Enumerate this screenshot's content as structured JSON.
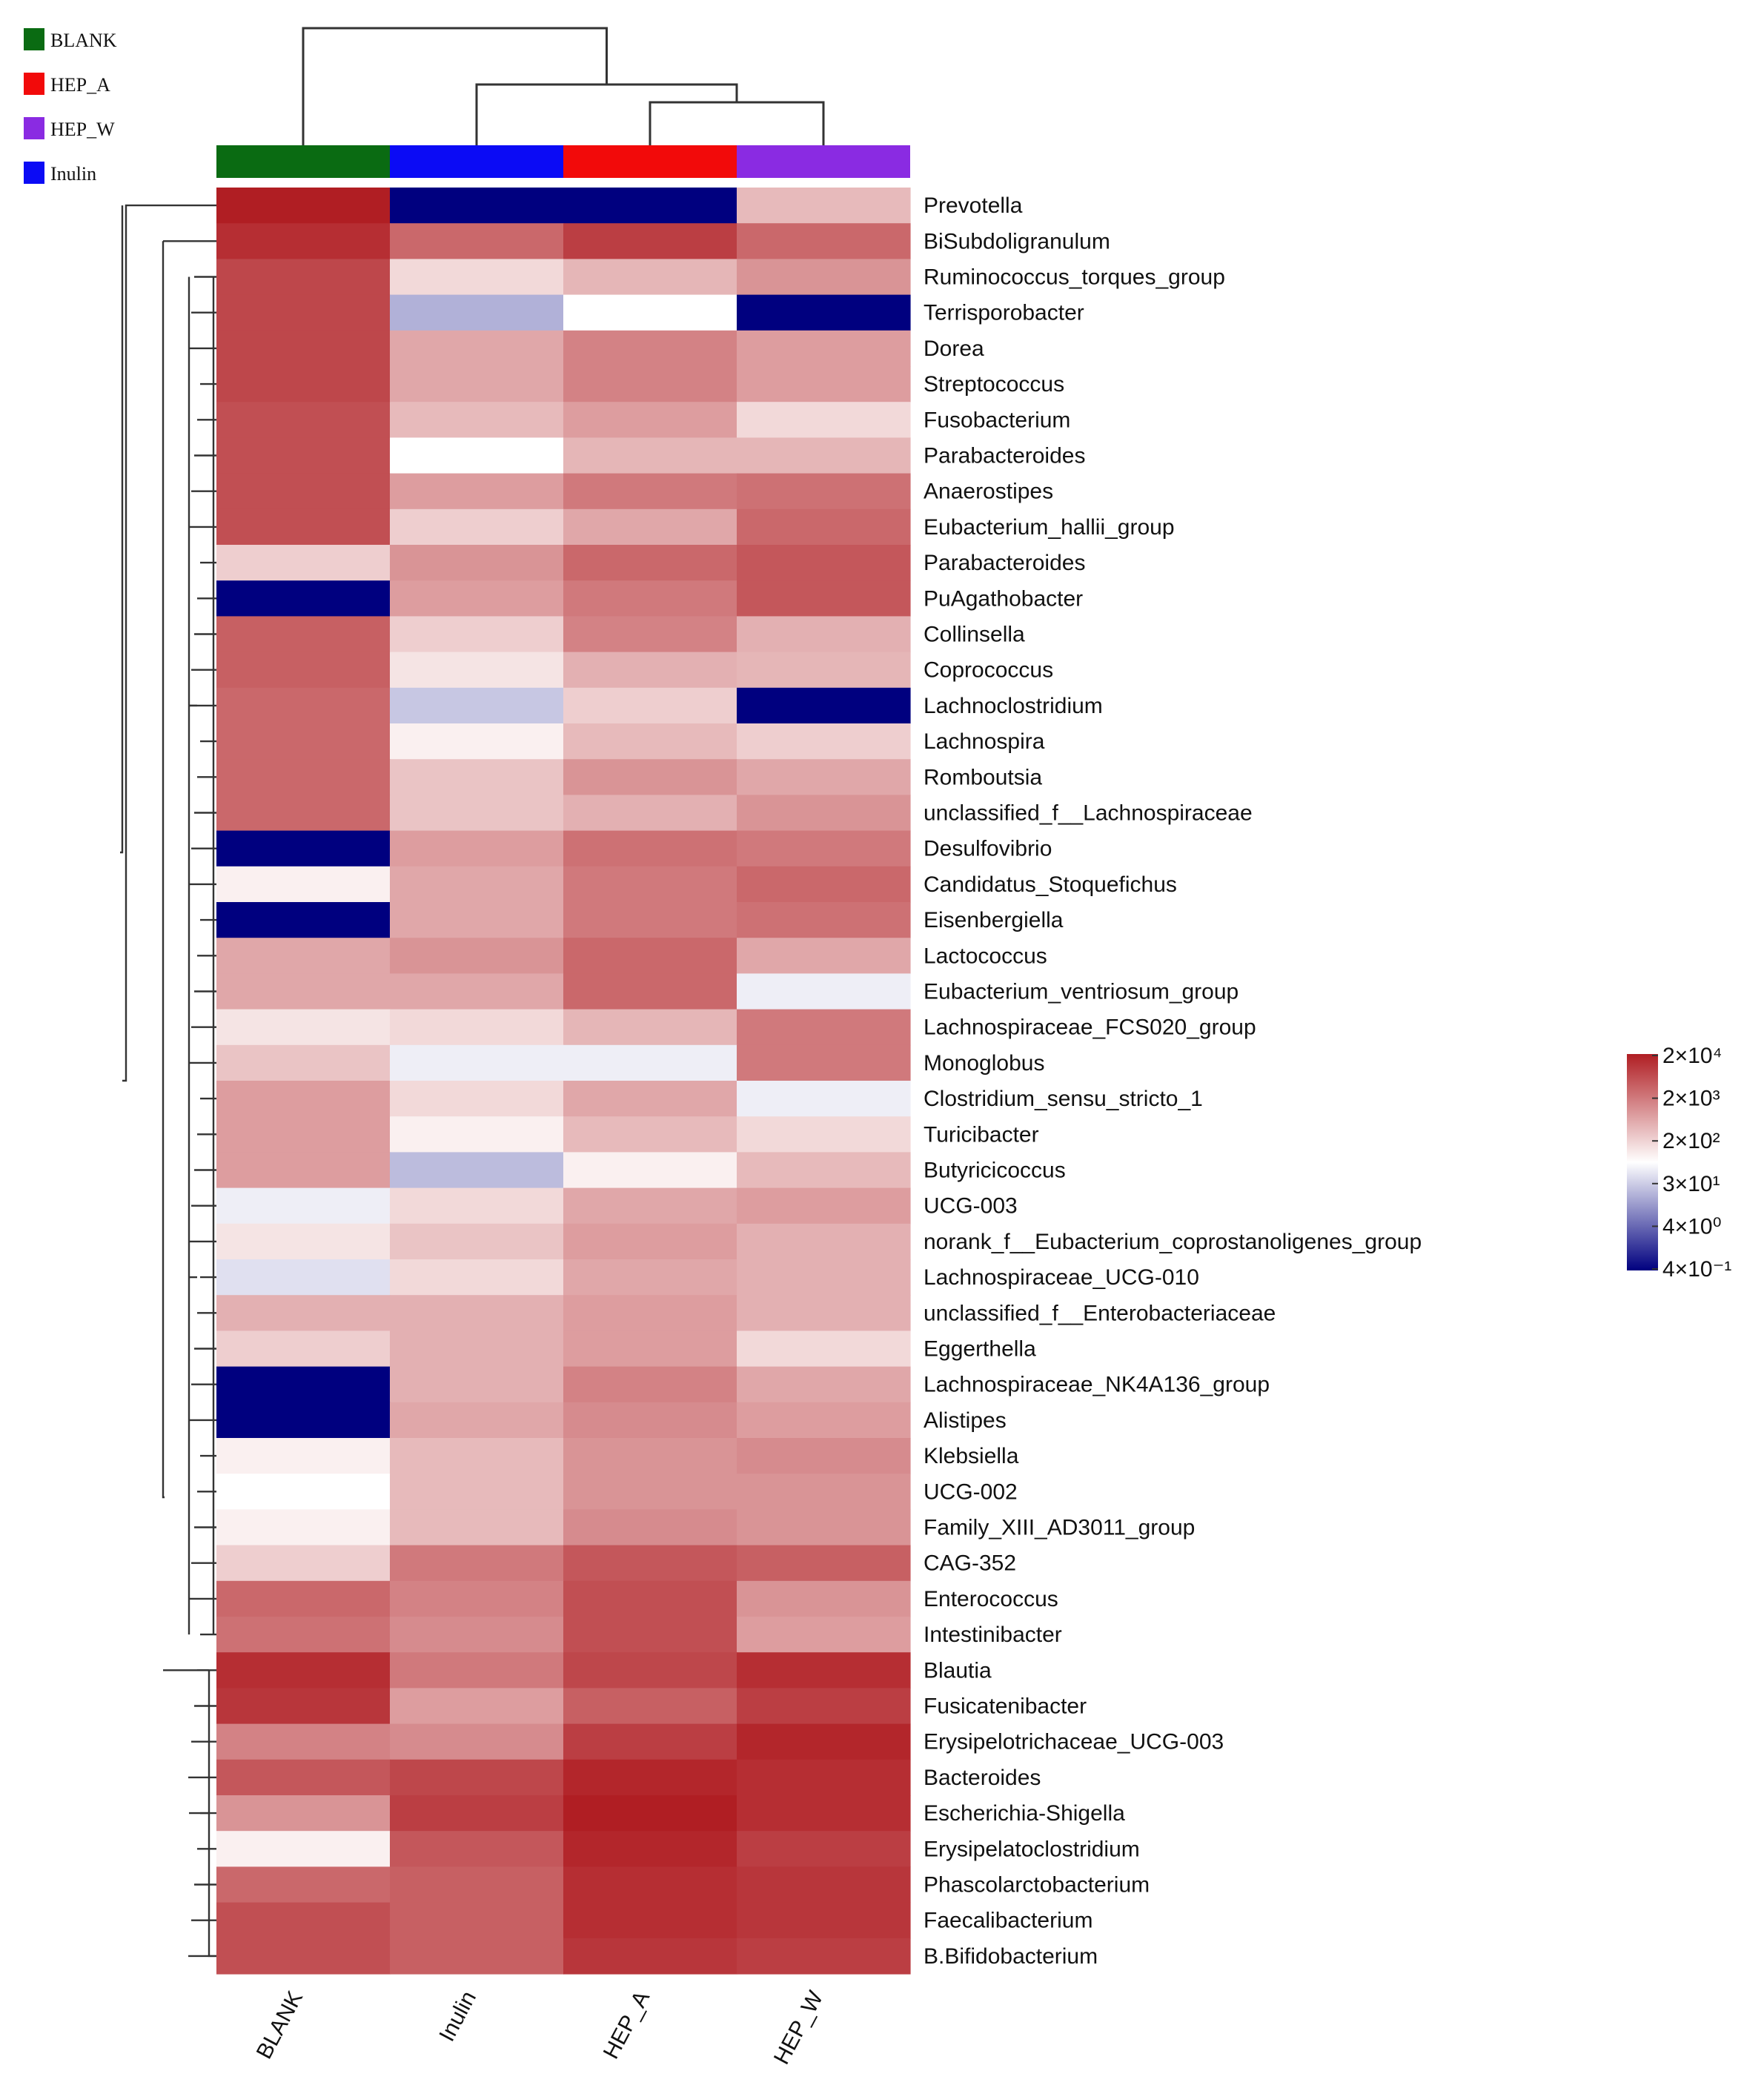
{
  "chart_data": {
    "type": "heatmap",
    "value_scale": "log10",
    "columns": [
      "BLANK",
      "Inulin",
      "HEP_A",
      "HEP_W"
    ],
    "group_legend": [
      {
        "name": "BLANK",
        "color": "#0a6b12"
      },
      {
        "name": "HEP_A",
        "color": "#f20a0a"
      },
      {
        "name": "HEP_W",
        "color": "#8a2be2"
      },
      {
        "name": "Inulin",
        "color": "#0b0bf5"
      }
    ],
    "group_bar_colors": [
      "#0a6b12",
      "#0b0bf5",
      "#f20a0a",
      "#8a2be2"
    ],
    "rows": [
      {
        "name": "Prevotella",
        "values": [
          2.0,
          -0.4,
          -0.4,
          1.1
        ]
      },
      {
        "name": "BiSubdoligranulum",
        "values": [
          1.9,
          1.55,
          1.8,
          1.55
        ]
      },
      {
        "name": "Ruminococcus_torques_group",
        "values": [
          1.75,
          0.95,
          1.12,
          1.3
        ]
      },
      {
        "name": "Terrisporobacter",
        "values": [
          1.75,
          0.5,
          0.8,
          -0.4
        ]
      },
      {
        "name": "Dorea",
        "values": [
          1.75,
          1.2,
          1.4,
          1.25
        ]
      },
      {
        "name": "Streptococcus",
        "values": [
          1.75,
          1.2,
          1.4,
          1.25
        ]
      },
      {
        "name": "Fusobacterium",
        "values": [
          1.7,
          1.1,
          1.25,
          0.95
        ]
      },
      {
        "name": "Parabacteroides",
        "values": [
          1.7,
          0.8,
          1.12,
          1.12
        ]
      },
      {
        "name": "Anaerostipes",
        "values": [
          1.7,
          1.25,
          1.45,
          1.5
        ]
      },
      {
        "name": "Eubacterium_hallii_group",
        "values": [
          1.7,
          1.0,
          1.2,
          1.55
        ]
      },
      {
        "name": "Parabacteroides",
        "values": [
          1.0,
          1.3,
          1.55,
          1.65
        ]
      },
      {
        "name": "PuAgathobacter",
        "values": [
          -0.4,
          1.25,
          1.45,
          1.65
        ]
      },
      {
        "name": "Collinsella",
        "values": [
          1.6,
          1.0,
          1.4,
          1.15
        ]
      },
      {
        "name": "Coprococcus",
        "values": [
          1.6,
          0.9,
          1.15,
          1.12
        ]
      },
      {
        "name": "Lachnoclostridium",
        "values": [
          1.55,
          0.6,
          1.0,
          -0.4
        ]
      },
      {
        "name": "Lachnospira",
        "values": [
          1.55,
          0.85,
          1.1,
          1.0
        ]
      },
      {
        "name": "Romboutsia",
        "values": [
          1.55,
          1.05,
          1.3,
          1.2
        ]
      },
      {
        "name": "unclassified_f__Lachnospiraceae",
        "values": [
          1.55,
          1.05,
          1.15,
          1.3
        ]
      },
      {
        "name": "Desulfovibrio",
        "values": [
          -0.4,
          1.25,
          1.5,
          1.45
        ]
      },
      {
        "name": "Candidatus_Stoquefichus",
        "values": [
          0.85,
          1.2,
          1.45,
          1.55
        ]
      },
      {
        "name": "Eisenbergiella",
        "values": [
          -0.4,
          1.2,
          1.45,
          1.5
        ]
      },
      {
        "name": "Lactococcus",
        "values": [
          1.2,
          1.3,
          1.55,
          1.2
        ]
      },
      {
        "name": "Eubacterium_ventriosum_group",
        "values": [
          1.2,
          1.2,
          1.55,
          0.75
        ]
      },
      {
        "name": "Lachnospiraceae_FCS020_group",
        "values": [
          0.9,
          0.95,
          1.12,
          1.45
        ]
      },
      {
        "name": "Monoglobus",
        "values": [
          1.05,
          0.75,
          0.75,
          1.45
        ]
      },
      {
        "name": "Clostridium_sensu_stricto_1",
        "values": [
          1.25,
          0.95,
          1.2,
          0.75
        ]
      },
      {
        "name": "Turicibacter",
        "values": [
          1.25,
          0.85,
          1.1,
          0.95
        ]
      },
      {
        "name": "Butyricicoccus",
        "values": [
          1.25,
          0.55,
          0.85,
          1.1
        ]
      },
      {
        "name": "UCG-003",
        "values": [
          0.75,
          0.95,
          1.2,
          1.25
        ]
      },
      {
        "name": "norank_f__Eubacterium_coprostanoligenes_group",
        "values": [
          0.9,
          1.05,
          1.25,
          1.15
        ]
      },
      {
        "name": "Lachnospiraceae_UCG-010",
        "values": [
          0.7,
          0.95,
          1.2,
          1.15
        ]
      },
      {
        "name": "unclassified_f__Enterobacteriaceae",
        "values": [
          1.15,
          1.15,
          1.25,
          1.15
        ]
      },
      {
        "name": "Eggerthella",
        "values": [
          1.0,
          1.15,
          1.25,
          0.95
        ]
      },
      {
        "name": "Lachnospiraceae_NK4A136_group",
        "values": [
          -0.4,
          1.15,
          1.4,
          1.2
        ]
      },
      {
        "name": "Alistipes",
        "values": [
          -0.4,
          1.2,
          1.35,
          1.25
        ]
      },
      {
        "name": "Klebsiella",
        "values": [
          0.85,
          1.1,
          1.3,
          1.35
        ]
      },
      {
        "name": "UCG-002",
        "values": [
          0.8,
          1.1,
          1.3,
          1.3
        ]
      },
      {
        "name": "Family_XIII_AD3011_group",
        "values": [
          0.85,
          1.1,
          1.35,
          1.3
        ]
      },
      {
        "name": "CAG-352",
        "values": [
          1.0,
          1.45,
          1.65,
          1.6
        ]
      },
      {
        "name": "Enterococcus",
        "values": [
          1.55,
          1.4,
          1.7,
          1.3
        ]
      },
      {
        "name": "Intestinibacter",
        "values": [
          1.5,
          1.35,
          1.7,
          1.25
        ]
      },
      {
        "name": "Blautia",
        "values": [
          1.9,
          1.45,
          1.75,
          1.9
        ]
      },
      {
        "name": "Fusicatenibacter",
        "values": [
          1.85,
          1.25,
          1.6,
          1.8
        ]
      },
      {
        "name": "Erysipelotrichaceae_UCG-003",
        "values": [
          1.4,
          1.35,
          1.8,
          1.95
        ]
      },
      {
        "name": "Bacteroides",
        "values": [
          1.65,
          1.75,
          1.95,
          1.9
        ]
      },
      {
        "name": "Escherichia-Shigella",
        "values": [
          1.3,
          1.8,
          2.0,
          1.9
        ]
      },
      {
        "name": "Erysipelatoclostridium",
        "values": [
          0.85,
          1.65,
          1.95,
          1.8
        ]
      },
      {
        "name": "Phascolarctobacterium",
        "values": [
          1.55,
          1.6,
          1.9,
          1.85
        ]
      },
      {
        "name": "Faecalibacterium",
        "values": [
          1.7,
          1.6,
          1.9,
          1.85
        ]
      },
      {
        "name": "B.Bifidobacterium",
        "values": [
          1.7,
          1.6,
          1.85,
          1.8
        ]
      }
    ],
    "colorbar": {
      "labels": [
        "2×10⁴",
        "2×10³",
        "2×10²",
        "3×10¹",
        "4×10⁰",
        "4×10⁻¹"
      ],
      "colors": [
        "#b01e23",
        "#ffffff",
        "#00007f"
      ]
    },
    "column_dendrogram": "(BLANK,(Inulin,(HEP_A,HEP_W)))"
  }
}
